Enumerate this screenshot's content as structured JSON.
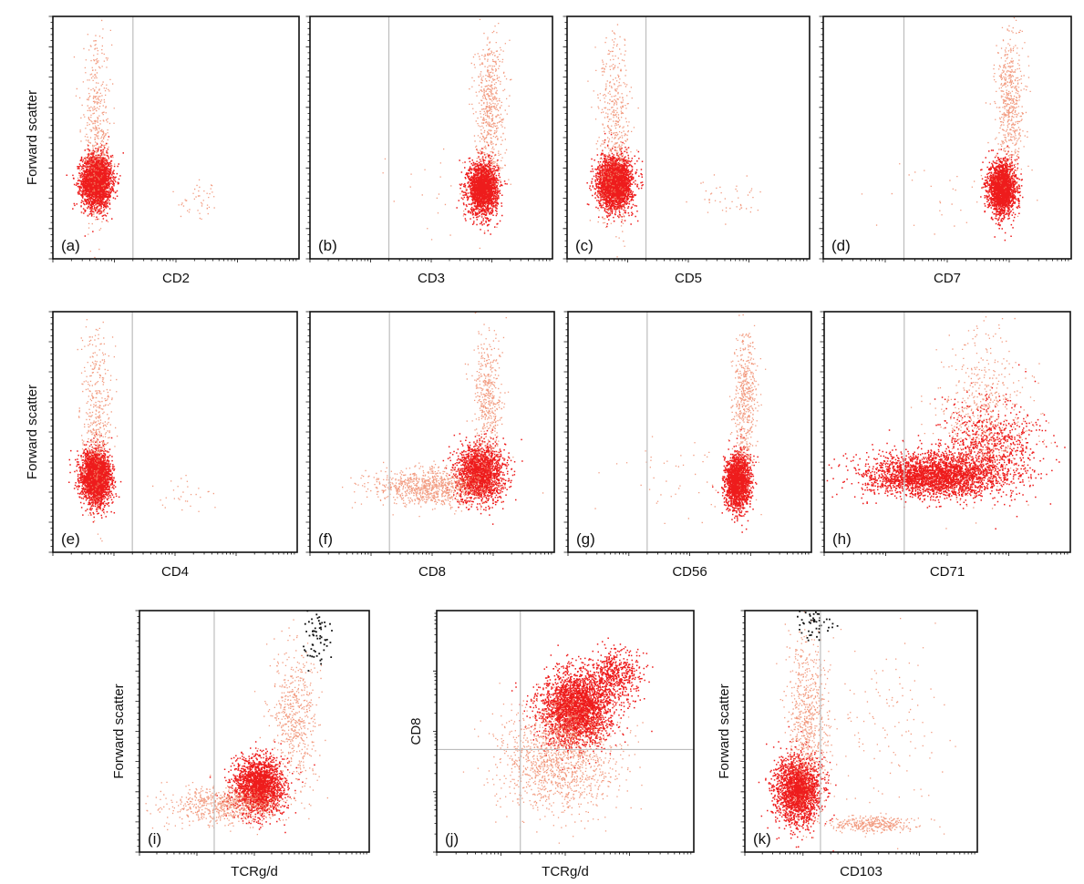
{
  "figure": {
    "colors": {
      "population": "#ee1c1c",
      "population_light": "#f08a6a",
      "gated_events": "#111111",
      "gate_line": "#bdbdbd",
      "frame": "#111111"
    }
  },
  "chart_data": [
    {
      "type": "scatter",
      "panel_label": "(a)",
      "xlabel": "CD2",
      "ylabel": "Forward scatter",
      "xscale": "log",
      "x_range": [
        1,
        10000
      ],
      "y_range": [
        0,
        1024
      ],
      "gate_x": 20,
      "grid": false,
      "clusters": [
        {
          "x_center": 5,
          "y_center": 330,
          "x_spread_decades": 0.12,
          "y_spread": 55,
          "events": 2600,
          "tone": "population"
        },
        {
          "x_center": 5,
          "y_center": 540,
          "x_spread_decades": 0.12,
          "y_spread": 190,
          "events": 450,
          "tone": "population_light"
        },
        {
          "x_center": 250,
          "y_center": 240,
          "x_spread_decades": 0.18,
          "y_spread": 40,
          "events": 45,
          "tone": "population_light"
        }
      ]
    },
    {
      "type": "scatter",
      "panel_label": "(b)",
      "xlabel": "CD3",
      "ylabel": "",
      "xscale": "log",
      "x_range": [
        1,
        10000
      ],
      "y_range": [
        0,
        1024
      ],
      "gate_x": 20,
      "grid": false,
      "clusters": [
        {
          "x_center": 700,
          "y_center": 300,
          "x_spread_decades": 0.12,
          "y_spread": 55,
          "events": 2000,
          "tone": "population"
        },
        {
          "x_center": 900,
          "y_center": 650,
          "x_spread_decades": 0.12,
          "y_spread": 150,
          "events": 550,
          "tone": "population_light"
        },
        {
          "x_center": 150,
          "y_center": 300,
          "x_spread_decades": 0.6,
          "y_spread": 110,
          "events": 35,
          "tone": "population_light"
        }
      ]
    },
    {
      "type": "scatter",
      "panel_label": "(c)",
      "xlabel": "CD5",
      "ylabel": "",
      "xscale": "log",
      "x_range": [
        1,
        10000
      ],
      "y_range": [
        0,
        1024
      ],
      "gate_x": 20,
      "grid": false,
      "clusters": [
        {
          "x_center": 6,
          "y_center": 320,
          "x_spread_decades": 0.14,
          "y_spread": 55,
          "events": 2600,
          "tone": "population"
        },
        {
          "x_center": 6,
          "y_center": 550,
          "x_spread_decades": 0.14,
          "y_spread": 200,
          "events": 500,
          "tone": "population_light"
        },
        {
          "x_center": 400,
          "y_center": 250,
          "x_spread_decades": 0.3,
          "y_spread": 45,
          "events": 45,
          "tone": "population_light"
        }
      ]
    },
    {
      "type": "scatter",
      "panel_label": "(d)",
      "xlabel": "CD7",
      "ylabel": "",
      "xscale": "log",
      "x_range": [
        1,
        10000
      ],
      "y_range": [
        0,
        1024
      ],
      "gate_x": 20,
      "grid": false,
      "clusters": [
        {
          "x_center": 750,
          "y_center": 300,
          "x_spread_decades": 0.11,
          "y_spread": 55,
          "events": 2000,
          "tone": "population"
        },
        {
          "x_center": 1000,
          "y_center": 650,
          "x_spread_decades": 0.11,
          "y_spread": 150,
          "events": 550,
          "tone": "population_light"
        },
        {
          "x_center": 100,
          "y_center": 280,
          "x_spread_decades": 0.6,
          "y_spread": 100,
          "events": 35,
          "tone": "population_light"
        }
      ]
    },
    {
      "type": "scatter",
      "panel_label": "(e)",
      "xlabel": "CD4",
      "ylabel": "Forward scatter",
      "xscale": "log",
      "x_range": [
        1,
        10000
      ],
      "y_range": [
        0,
        1024
      ],
      "gate_x": 20,
      "grid": false,
      "clusters": [
        {
          "x_center": 5,
          "y_center": 320,
          "x_spread_decades": 0.12,
          "y_spread": 55,
          "events": 2600,
          "tone": "population"
        },
        {
          "x_center": 5,
          "y_center": 560,
          "x_spread_decades": 0.12,
          "y_spread": 190,
          "events": 450,
          "tone": "population_light"
        },
        {
          "x_center": 150,
          "y_center": 250,
          "x_spread_decades": 0.3,
          "y_spread": 45,
          "events": 30,
          "tone": "population_light"
        }
      ]
    },
    {
      "type": "scatter",
      "panel_label": "(f)",
      "xlabel": "CD8",
      "ylabel": "",
      "xscale": "log",
      "x_range": [
        1,
        10000
      ],
      "y_range": [
        0,
        1024
      ],
      "gate_x": 20,
      "grid": false,
      "clusters": [
        {
          "x_center": 600,
          "y_center": 340,
          "x_spread_decades": 0.2,
          "y_spread": 60,
          "events": 1800,
          "tone": "population"
        },
        {
          "x_center": 80,
          "y_center": 280,
          "x_spread_decades": 0.45,
          "y_spread": 40,
          "events": 900,
          "tone": "population_light"
        },
        {
          "x_center": 800,
          "y_center": 650,
          "x_spread_decades": 0.12,
          "y_spread": 140,
          "events": 450,
          "tone": "population_light"
        }
      ]
    },
    {
      "type": "scatter",
      "panel_label": "(g)",
      "xlabel": "CD56",
      "ylabel": "",
      "xscale": "log",
      "x_range": [
        1,
        10000
      ],
      "y_range": [
        0,
        1024
      ],
      "gate_x": 20,
      "grid": false,
      "clusters": [
        {
          "x_center": 600,
          "y_center": 300,
          "x_spread_decades": 0.1,
          "y_spread": 60,
          "events": 1800,
          "tone": "population"
        },
        {
          "x_center": 800,
          "y_center": 650,
          "x_spread_decades": 0.09,
          "y_spread": 150,
          "events": 500,
          "tone": "population_light"
        },
        {
          "x_center": 60,
          "y_center": 320,
          "x_spread_decades": 0.6,
          "y_spread": 100,
          "events": 45,
          "tone": "population_light"
        }
      ]
    },
    {
      "type": "scatter",
      "panel_label": "(h)",
      "xlabel": "CD71",
      "ylabel": "",
      "xscale": "log",
      "x_range": [
        1,
        10000
      ],
      "y_range": [
        0,
        1024
      ],
      "gate_x": 20,
      "grid": false,
      "clusters": [
        {
          "x_center": 60,
          "y_center": 330,
          "x_spread_decades": 0.55,
          "y_spread": 45,
          "events": 2800,
          "tone": "population"
        },
        {
          "x_center": 500,
          "y_center": 450,
          "x_spread_decades": 0.4,
          "y_spread": 100,
          "events": 800,
          "tone": "population"
        },
        {
          "x_center": 400,
          "y_center": 600,
          "x_spread_decades": 0.35,
          "y_spread": 170,
          "events": 550,
          "tone": "population_light"
        }
      ]
    },
    {
      "type": "scatter",
      "panel_label": "(i)",
      "xlabel": "TCRg/d",
      "ylabel": "Forward scatter",
      "xscale": "log",
      "x_range": [
        1,
        10000
      ],
      "y_range": [
        0,
        1024
      ],
      "gate_x": 20,
      "grid": false,
      "clusters": [
        {
          "x_center": 120,
          "y_center": 280,
          "x_spread_decades": 0.22,
          "y_spread": 60,
          "events": 2000,
          "tone": "population"
        },
        {
          "x_center": 30,
          "y_center": 200,
          "x_spread_decades": 0.5,
          "y_spread": 40,
          "events": 700,
          "tone": "population_light"
        },
        {
          "x_center": 500,
          "y_center": 580,
          "x_spread_decades": 0.2,
          "y_spread": 150,
          "events": 550,
          "tone": "population_light"
        },
        {
          "x_center": 1200,
          "y_center": 920,
          "x_spread_decades": 0.12,
          "y_spread": 60,
          "events": 60,
          "tone": "gated_events"
        }
      ]
    },
    {
      "type": "scatter",
      "panel_label": "(j)",
      "xlabel": "TCRg/d",
      "ylabel": "CD8",
      "xscale": "log",
      "yscale": "log",
      "x_range": [
        1,
        10000
      ],
      "y_range": [
        1,
        10000
      ],
      "gate_x": 20,
      "gate_y": 50,
      "grid": false,
      "clusters": [
        {
          "x_center": 150,
          "y_center": 250,
          "x_spread_decades": 0.28,
          "y_spread_decades": 0.3,
          "events": 2800,
          "tone": "population"
        },
        {
          "x_center": 80,
          "y_center": 40,
          "x_spread_decades": 0.45,
          "y_spread_decades": 0.45,
          "events": 1400,
          "tone": "population_light"
        },
        {
          "x_center": 600,
          "y_center": 900,
          "x_spread_decades": 0.2,
          "y_spread_decades": 0.2,
          "events": 500,
          "tone": "population"
        }
      ]
    },
    {
      "type": "scatter",
      "panel_label": "(k)",
      "xlabel": "CD103",
      "ylabel": "Forward scatter",
      "xscale": "log",
      "x_range": [
        1,
        10000
      ],
      "y_range": [
        0,
        1024
      ],
      "gate_x": 20,
      "grid": false,
      "clusters": [
        {
          "x_center": 8,
          "y_center": 260,
          "x_spread_decades": 0.2,
          "y_spread": 70,
          "events": 2000,
          "tone": "population"
        },
        {
          "x_center": 12,
          "y_center": 560,
          "x_spread_decades": 0.18,
          "y_spread": 180,
          "events": 700,
          "tone": "population_light"
        },
        {
          "x_center": 150,
          "y_center": 120,
          "x_spread_decades": 0.35,
          "y_spread": 18,
          "events": 350,
          "tone": "population_light"
        },
        {
          "x_center": 300,
          "y_center": 500,
          "x_spread_decades": 0.5,
          "y_spread": 200,
          "events": 120,
          "tone": "population_light"
        },
        {
          "x_center": 15,
          "y_center": 960,
          "x_spread_decades": 0.15,
          "y_spread": 40,
          "events": 50,
          "tone": "gated_events"
        }
      ]
    }
  ]
}
